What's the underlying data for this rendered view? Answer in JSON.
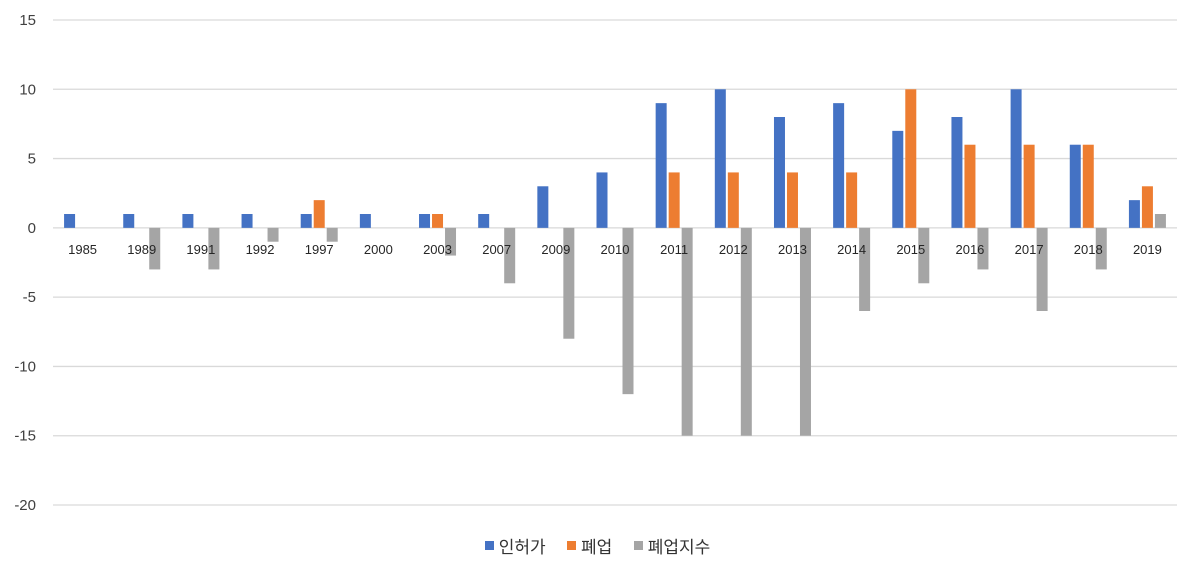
{
  "chart_data": {
    "type": "bar",
    "title": "",
    "xlabel": "",
    "ylabel": "",
    "ylim": [
      -20,
      15
    ],
    "yticks": [
      15,
      10,
      5,
      0,
      -5,
      -10,
      -15,
      -20
    ],
    "grid": true,
    "legend_position": "bottom",
    "categories": [
      "1985",
      "1989",
      "1991",
      "1992",
      "1997",
      "2000",
      "2003",
      "2007",
      "2009",
      "2010",
      "2011",
      "2012",
      "2013",
      "2014",
      "2015",
      "2016",
      "2017",
      "2018",
      "2019"
    ],
    "series": [
      {
        "name": "인허가",
        "color": "#4472C4",
        "values": [
          1,
          1,
          1,
          1,
          1,
          1,
          1,
          1,
          3,
          4,
          9,
          10,
          8,
          9,
          7,
          8,
          10,
          6,
          2
        ]
      },
      {
        "name": "폐업",
        "color": "#ED7D31",
        "values": [
          0,
          0,
          0,
          0,
          2,
          0,
          1,
          0,
          0,
          0,
          4,
          4,
          4,
          4,
          10,
          6,
          6,
          6,
          3
        ]
      },
      {
        "name": "폐업지수",
        "color": "#A5A5A5",
        "values": [
          0,
          -3,
          -3,
          -1,
          -1,
          0,
          -2,
          -4,
          -8,
          -12,
          -15,
          -15,
          -15,
          -6,
          -4,
          -3,
          -6,
          -3,
          1
        ]
      }
    ]
  },
  "legend": {
    "items": [
      {
        "label": "인허가",
        "color": "#4472C4"
      },
      {
        "label": "폐업",
        "color": "#ED7D31"
      },
      {
        "label": "폐업지수",
        "color": "#A5A5A5"
      }
    ]
  }
}
